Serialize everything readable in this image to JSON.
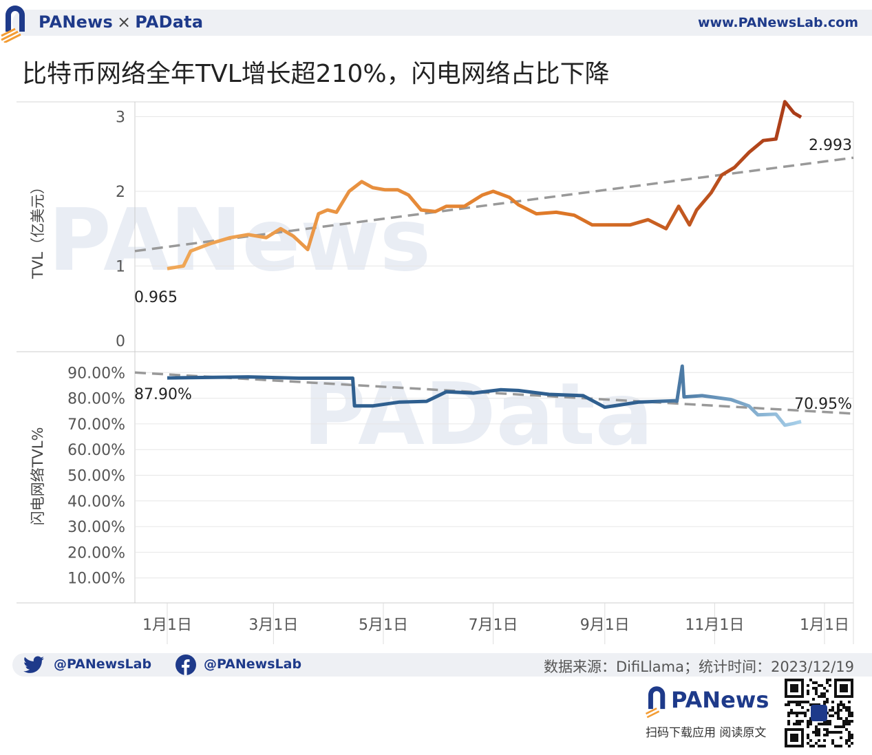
{
  "header": {
    "brand_left": "PANews",
    "brand_sep": "×",
    "brand_right": "PAData",
    "site": "www.PANewsLab.com"
  },
  "title": "比特币网络全年TVL增长超210%，闪电网络占比下降",
  "footer": {
    "twitter_handle": "@PANewsLab",
    "facebook_handle": "@PANewsLab",
    "source": "数据来源：DifiLlama；统计时间：2023/12/19",
    "app_name": "PANews",
    "download_text": "扫码下载应用  阅读原文"
  },
  "watermarks": [
    "PANews",
    "PAData"
  ],
  "colors": {
    "tvl_start": "#f0a858",
    "tvl_mid": "#e07a28",
    "tvl_end": "#a83a18",
    "share_start": "#2f5f8f",
    "share_end": "#a8d0ea",
    "trend": "#999999",
    "brand": "#1e3a8a"
  },
  "chart_data": [
    {
      "type": "line",
      "ylabel": "TVL（亿美元）",
      "ylim": [
        0,
        3.3
      ],
      "yticks": [
        "0",
        "1",
        "2",
        "3"
      ],
      "xticks": [
        "1月1日",
        "3月1日",
        "5月1日",
        "7月1日",
        "9月1日",
        "11月1日",
        "1月1日"
      ],
      "start_label": "0.965",
      "end_label": "2.993",
      "trendline": {
        "start": 1.2,
        "end": 2.45
      },
      "series": [
        {
          "x": [
            "2023-01-01",
            "2023-01-10",
            "2023-01-14",
            "2023-01-25",
            "2023-02-05",
            "2023-02-15",
            "2023-02-25",
            "2023-03-05",
            "2023-03-12",
            "2023-03-20",
            "2023-03-26",
            "2023-03-31",
            "2023-04-05",
            "2023-04-12",
            "2023-04-19",
            "2023-04-25",
            "2023-05-02",
            "2023-05-09",
            "2023-05-15",
            "2023-05-22",
            "2023-05-30",
            "2023-06-05",
            "2023-06-15",
            "2023-06-25",
            "2023-07-01",
            "2023-07-10",
            "2023-07-15",
            "2023-07-25",
            "2023-08-05",
            "2023-08-15",
            "2023-08-25",
            "2023-09-05",
            "2023-09-15",
            "2023-09-25",
            "2023-10-05",
            "2023-10-12",
            "2023-10-18",
            "2023-10-22",
            "2023-10-30",
            "2023-11-05",
            "2023-11-12",
            "2023-11-20",
            "2023-11-28",
            "2023-12-05",
            "2023-12-10",
            "2023-12-15",
            "2023-12-19"
          ],
          "values": [
            0.965,
            1.0,
            1.2,
            1.3,
            1.38,
            1.42,
            1.38,
            1.5,
            1.4,
            1.22,
            1.7,
            1.75,
            1.72,
            2.0,
            2.13,
            2.05,
            2.02,
            2.02,
            1.95,
            1.75,
            1.73,
            1.8,
            1.8,
            1.95,
            2.0,
            1.92,
            1.82,
            1.7,
            1.72,
            1.68,
            1.55,
            1.55,
            1.55,
            1.62,
            1.5,
            1.8,
            1.55,
            1.75,
            1.98,
            2.22,
            2.32,
            2.52,
            2.68,
            2.7,
            3.2,
            3.05,
            2.993
          ]
        }
      ]
    },
    {
      "type": "line",
      "ylabel": "闪电网络TVL%",
      "ylim": [
        0,
        95
      ],
      "yticks": [
        "10.00%",
        "20.00%",
        "30.00%",
        "40.00%",
        "50.00%",
        "60.00%",
        "70.00%",
        "80.00%",
        "90.00%"
      ],
      "start_label": "87.90%",
      "end_label": "70.95%",
      "trendline": {
        "start": 90.0,
        "end": 74.0
      },
      "series": [
        {
          "x": [
            "2023-01-01",
            "2023-02-15",
            "2023-03-15",
            "2023-04-14",
            "2023-04-15",
            "2023-04-25",
            "2023-05-10",
            "2023-05-25",
            "2023-06-05",
            "2023-06-20",
            "2023-07-05",
            "2023-07-15",
            "2023-08-01",
            "2023-08-20",
            "2023-09-01",
            "2023-09-20",
            "2023-10-10",
            "2023-10-11",
            "2023-10-14",
            "2023-10-15",
            "2023-10-25",
            "2023-11-10",
            "2023-11-20",
            "2023-11-25",
            "2023-12-05",
            "2023-12-10",
            "2023-12-15",
            "2023-12-19"
          ],
          "values": [
            87.9,
            88.3,
            87.8,
            87.8,
            77.0,
            77.0,
            78.5,
            78.8,
            82.5,
            82.0,
            83.3,
            83.0,
            81.5,
            81.0,
            76.5,
            78.5,
            79.0,
            78.8,
            92.5,
            80.5,
            81.0,
            79.5,
            77.0,
            73.5,
            73.8,
            69.5,
            70.2,
            70.95
          ]
        }
      ]
    }
  ]
}
